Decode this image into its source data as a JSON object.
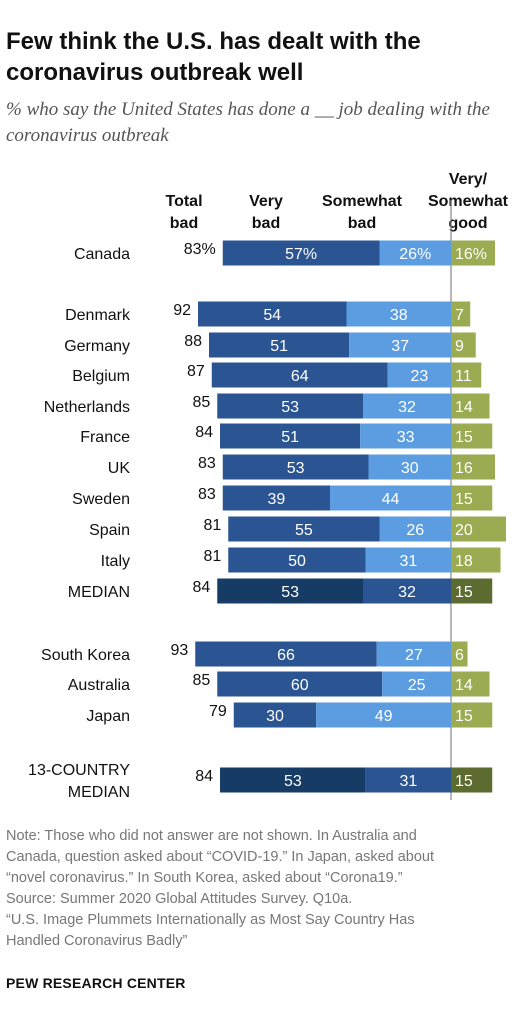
{
  "header": {
    "title": "Few think the U.S. has dealt with the coronavirus outbreak well",
    "subtitle": "% who say the United States has done a __ job dealing with the coronavirus outbreak"
  },
  "footer": {
    "note_lines": [
      "Note: Those who did not answer are not shown. In Australia and",
      "Canada, question asked about “COVID-19.” In Japan, asked about",
      "“novel coronavirus.” In South Korea, asked about “Corona19.”",
      "Source: Summer 2020 Global Attitudes Survey. Q10a.",
      "“U.S. Image Plummets Internationally as Most Say Country Has",
      "Handled Coronavirus Badly”"
    ],
    "organization": "PEW RESEARCH CENTER"
  },
  "colors": {
    "very_bad": "#2b5592",
    "somewhat_bad": "#5b9de0",
    "good": "#9aab52",
    "median_very_bad": "#163b65",
    "median_somewhat_bad": "#2b5592",
    "median_good": "#5c6b2f"
  },
  "chart_data": {
    "type": "bar",
    "orientation": "horizontal-diverging",
    "columns": {
      "total_bad": [
        "Total",
        "bad"
      ],
      "very_bad": [
        "Very",
        "bad"
      ],
      "somewhat_bad": [
        "Somewhat",
        "bad"
      ],
      "good": [
        "Very/",
        "Somewhat",
        "good"
      ]
    },
    "rows": [
      {
        "label": [
          "Canada"
        ],
        "total": "83%",
        "very_bad": 57,
        "very_bad_label": "57%",
        "somewhat_bad": 26,
        "somewhat_bad_label": "26%",
        "good": 16,
        "good_label": "16%",
        "median": false
      },
      {
        "label": [
          "Denmark"
        ],
        "total": "92",
        "very_bad": 54,
        "very_bad_label": "54",
        "somewhat_bad": 38,
        "somewhat_bad_label": "38",
        "good": 7,
        "good_label": "7",
        "median": false
      },
      {
        "label": [
          "Germany"
        ],
        "total": "88",
        "very_bad": 51,
        "very_bad_label": "51",
        "somewhat_bad": 37,
        "somewhat_bad_label": "37",
        "good": 9,
        "good_label": "9",
        "median": false
      },
      {
        "label": [
          "Belgium"
        ],
        "total": "87",
        "very_bad": 64,
        "very_bad_label": "64",
        "somewhat_bad": 23,
        "somewhat_bad_label": "23",
        "good": 11,
        "good_label": "11",
        "median": false
      },
      {
        "label": [
          "Netherlands"
        ],
        "total": "85",
        "very_bad": 53,
        "very_bad_label": "53",
        "somewhat_bad": 32,
        "somewhat_bad_label": "32",
        "good": 14,
        "good_label": "14",
        "median": false
      },
      {
        "label": [
          "France"
        ],
        "total": "84",
        "very_bad": 51,
        "very_bad_label": "51",
        "somewhat_bad": 33,
        "somewhat_bad_label": "33",
        "good": 15,
        "good_label": "15",
        "median": false
      },
      {
        "label": [
          "UK"
        ],
        "total": "83",
        "very_bad": 53,
        "very_bad_label": "53",
        "somewhat_bad": 30,
        "somewhat_bad_label": "30",
        "good": 16,
        "good_label": "16",
        "median": false
      },
      {
        "label": [
          "Sweden"
        ],
        "total": "83",
        "very_bad": 39,
        "very_bad_label": "39",
        "somewhat_bad": 44,
        "somewhat_bad_label": "44",
        "good": 15,
        "good_label": "15",
        "median": false
      },
      {
        "label": [
          "Spain"
        ],
        "total": "81",
        "very_bad": 55,
        "very_bad_label": "55",
        "somewhat_bad": 26,
        "somewhat_bad_label": "26",
        "good": 20,
        "good_label": "20",
        "median": false
      },
      {
        "label": [
          "Italy"
        ],
        "total": "81",
        "very_bad": 50,
        "very_bad_label": "50",
        "somewhat_bad": 31,
        "somewhat_bad_label": "31",
        "good": 18,
        "good_label": "18",
        "median": false
      },
      {
        "label": [
          "MEDIAN"
        ],
        "total": "84",
        "very_bad": 53,
        "very_bad_label": "53",
        "somewhat_bad": 32,
        "somewhat_bad_label": "32",
        "good": 15,
        "good_label": "15",
        "median": true
      },
      {
        "label": [
          "South Korea"
        ],
        "total": "93",
        "very_bad": 66,
        "very_bad_label": "66",
        "somewhat_bad": 27,
        "somewhat_bad_label": "27",
        "good": 6,
        "good_label": "6",
        "median": false
      },
      {
        "label": [
          "Australia"
        ],
        "total": "85",
        "very_bad": 60,
        "very_bad_label": "60",
        "somewhat_bad": 25,
        "somewhat_bad_label": "25",
        "good": 14,
        "good_label": "14",
        "median": false
      },
      {
        "label": [
          "Japan"
        ],
        "total": "79",
        "very_bad": 30,
        "very_bad_label": "30",
        "somewhat_bad": 49,
        "somewhat_bad_label": "49",
        "good": 15,
        "good_label": "15",
        "median": false
      },
      {
        "label": [
          "13-COUNTRY",
          "MEDIAN"
        ],
        "total": "84",
        "very_bad": 53,
        "very_bad_label": "53",
        "somewhat_bad": 31,
        "somewhat_bad_label": "31",
        "good": 15,
        "good_label": "15",
        "median": true
      }
    ]
  }
}
